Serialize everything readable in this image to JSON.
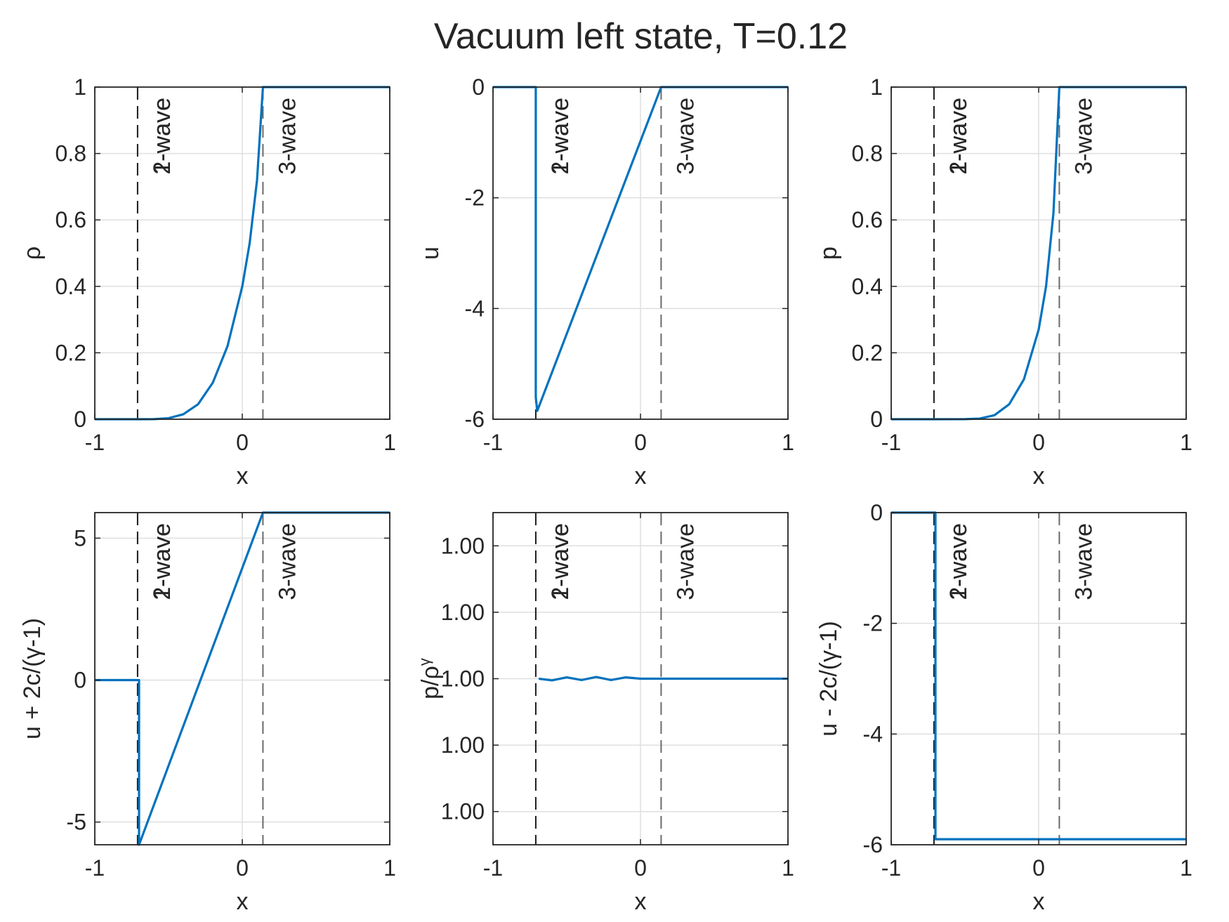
{
  "figure": {
    "title": "Vacuum left state, T=0.12",
    "line_color": "#0072BD",
    "axis_color": "#262626",
    "grid_color": "#dfdfdf",
    "wave_line_color": "#404040"
  },
  "chart_data": [
    {
      "type": "line",
      "panel": "rho",
      "xlabel": "x",
      "ylabel": "ρ",
      "xlim": [
        -1,
        1
      ],
      "ylim": [
        0,
        1
      ],
      "xticks": [
        -1,
        0,
        1
      ],
      "xtick_labels": [
        "-1",
        "0",
        "1"
      ],
      "yticks": [
        0,
        0.2,
        0.4,
        0.6,
        0.8,
        1
      ],
      "ytick_labels": [
        "0",
        "0.2",
        "0.4",
        "0.6",
        "0.8",
        "1"
      ],
      "grid": true,
      "wave_lines": [
        -0.71,
        0.14
      ],
      "wave_labels": [
        {
          "x": -0.71,
          "texts": [
            "1-wave",
            "2-wave"
          ]
        },
        {
          "x": 0.14,
          "texts": [
            "3-wave"
          ]
        }
      ],
      "series": [
        {
          "x": [
            -1,
            -0.71,
            -0.6,
            -0.5,
            -0.4,
            -0.3,
            -0.2,
            -0.1,
            0,
            0.05,
            0.1,
            0.14,
            0.2,
            0.5,
            1
          ],
          "y": [
            0,
            0,
            0.0003,
            0.003,
            0.015,
            0.045,
            0.11,
            0.22,
            0.4,
            0.53,
            0.72,
            1,
            1,
            1,
            1
          ]
        }
      ]
    },
    {
      "type": "line",
      "panel": "u",
      "xlabel": "x",
      "ylabel": "u",
      "xlim": [
        -1,
        1
      ],
      "ylim": [
        -6,
        0
      ],
      "xticks": [
        -1,
        0,
        1
      ],
      "xtick_labels": [
        "-1",
        "0",
        "1"
      ],
      "yticks": [
        -6,
        -4,
        -2,
        0
      ],
      "ytick_labels": [
        "-6",
        "-4",
        "-2",
        "0"
      ],
      "grid": true,
      "wave_lines": [
        -0.71,
        0.14
      ],
      "wave_labels": [
        {
          "x": -0.71,
          "texts": [
            "1-wave",
            "2-wave"
          ]
        },
        {
          "x": 0.14,
          "texts": [
            "3-wave"
          ]
        }
      ],
      "series": [
        {
          "x": [
            -1,
            -0.71,
            -0.71,
            -0.7,
            0.14,
            1
          ],
          "y": [
            0,
            0,
            -5.6,
            -5.85,
            0,
            0
          ]
        }
      ]
    },
    {
      "type": "line",
      "panel": "p",
      "xlabel": "x",
      "ylabel": "p",
      "xlim": [
        -1,
        1
      ],
      "ylim": [
        0,
        1
      ],
      "xticks": [
        -1,
        0,
        1
      ],
      "xtick_labels": [
        "-1",
        "0",
        "1"
      ],
      "yticks": [
        0,
        0.2,
        0.4,
        0.6,
        0.8,
        1
      ],
      "ytick_labels": [
        "0",
        "0.2",
        "0.4",
        "0.6",
        "0.8",
        "1"
      ],
      "grid": true,
      "wave_lines": [
        -0.71,
        0.14
      ],
      "wave_labels": [
        {
          "x": -0.71,
          "texts": [
            "1-wave",
            "2-wave"
          ]
        },
        {
          "x": 0.14,
          "texts": [
            "3-wave"
          ]
        }
      ],
      "series": [
        {
          "x": [
            -1,
            -0.71,
            -0.5,
            -0.4,
            -0.3,
            -0.2,
            -0.1,
            0,
            0.05,
            0.1,
            0.14,
            0.3,
            1
          ],
          "y": [
            0,
            0,
            0.0002,
            0.002,
            0.012,
            0.045,
            0.12,
            0.27,
            0.4,
            0.62,
            1,
            1,
            1
          ]
        }
      ]
    },
    {
      "type": "line",
      "panel": "u_plus",
      "xlabel": "x",
      "ylabel": "u + 2c/(γ-1)",
      "xlim": [
        -1,
        1
      ],
      "ylim": [
        -5.8,
        5.9
      ],
      "xticks": [
        -1,
        0,
        1
      ],
      "xtick_labels": [
        "-1",
        "0",
        "1"
      ],
      "yticks": [
        -5,
        0,
        5
      ],
      "ytick_labels": [
        "-5",
        "0",
        "5"
      ],
      "grid": true,
      "wave_lines": [
        -0.71,
        0.14
      ],
      "wave_labels": [
        {
          "x": -0.71,
          "texts": [
            "1-wave",
            "2-wave"
          ]
        },
        {
          "x": 0.14,
          "texts": [
            "3-wave"
          ]
        }
      ],
      "series": [
        {
          "x": [
            -1,
            -0.71,
            -0.7,
            -0.7,
            0.14,
            1
          ],
          "y": [
            0,
            0,
            0,
            -5.8,
            5.9,
            5.9
          ]
        }
      ]
    },
    {
      "type": "line",
      "panel": "entropy",
      "xlabel": "x",
      "ylabel": "p/ρ^γ",
      "xlim": [
        -1,
        1
      ],
      "ylim": [
        0.99995,
        1.00005
      ],
      "xticks": [
        -1,
        0,
        1
      ],
      "xtick_labels": [
        "-1",
        "0",
        "1"
      ],
      "yticks": [
        0.99996,
        0.99998,
        1,
        1.00002,
        1.00004
      ],
      "ytick_labels": [
        "1.00",
        "1.00",
        "1.00",
        "1.00",
        "1.00"
      ],
      "grid": true,
      "wave_lines": [
        -0.71,
        0.14
      ],
      "wave_labels": [
        {
          "x": -0.71,
          "texts": [
            "1-wave",
            "2-wave"
          ]
        },
        {
          "x": 0.14,
          "texts": [
            "3-wave"
          ]
        }
      ],
      "series": [
        {
          "x": [
            -0.69,
            -0.6,
            -0.5,
            -0.4,
            -0.3,
            -0.2,
            -0.1,
            0,
            0.14,
            1
          ],
          "y": [
            1,
            0.9999995,
            1.0000004,
            0.9999996,
            1.0000005,
            0.9999996,
            1.0000004,
            1,
            1,
            1
          ]
        }
      ]
    },
    {
      "type": "line",
      "panel": "u_minus",
      "xlabel": "x",
      "ylabel": "u - 2c/(γ-1)",
      "xlim": [
        -1,
        1
      ],
      "ylim": [
        -6,
        0
      ],
      "xticks": [
        -1,
        0,
        1
      ],
      "xtick_labels": [
        "-1",
        "0",
        "1"
      ],
      "yticks": [
        -6,
        -4,
        -2,
        0
      ],
      "ytick_labels": [
        "-6",
        "-4",
        "-2",
        "0"
      ],
      "grid": true,
      "wave_lines": [
        -0.71,
        0.14
      ],
      "wave_labels": [
        {
          "x": -0.71,
          "texts": [
            "1-wave",
            "2-wave"
          ]
        },
        {
          "x": 0.14,
          "texts": [
            "3-wave"
          ]
        }
      ],
      "series": [
        {
          "x": [
            -1,
            -0.71,
            -0.7,
            -0.7,
            1
          ],
          "y": [
            0,
            0,
            0,
            -5.9,
            -5.9
          ]
        }
      ]
    }
  ]
}
